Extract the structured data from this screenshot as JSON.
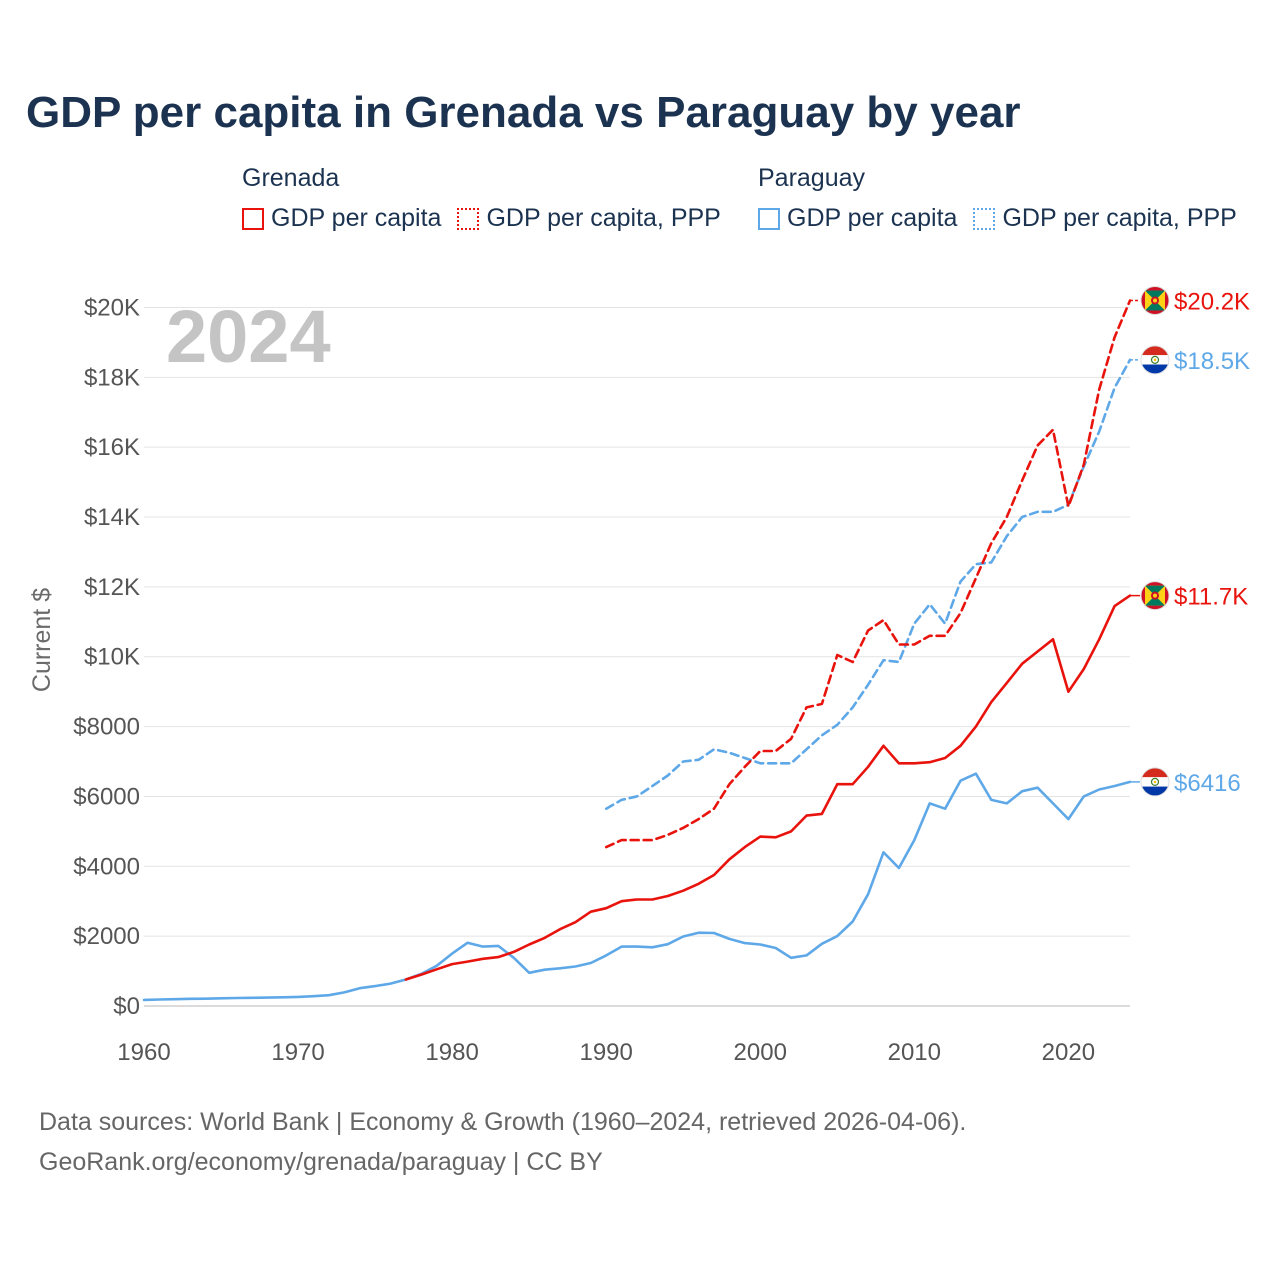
{
  "title": "GDP per capita in Grenada vs Paraguay by year",
  "legend": {
    "groups": [
      {
        "country": "Grenada",
        "items": [
          {
            "label": "GDP per capita",
            "color": "#e8130c",
            "style": "solid"
          },
          {
            "label": "GDP per capita, PPP",
            "color": "#e8130c",
            "style": "dotted"
          }
        ]
      },
      {
        "country": "Paraguay",
        "items": [
          {
            "label": "GDP per capita",
            "color": "#5fa8e8",
            "style": "solid"
          },
          {
            "label": "GDP per capita, PPP",
            "color": "#5fa8e8",
            "style": "dotted"
          }
        ]
      }
    ]
  },
  "footer": {
    "line1": "Data sources: World Bank | Economy & Growth (1960–2024, retrieved 2026-04-06).",
    "line2": "GeoRank.org/economy/grenada/paraguay | CC BY"
  },
  "chart_data": {
    "type": "line",
    "title": "GDP per capita in Grenada vs Paraguay by year",
    "year_label": "2024",
    "xlabel": "",
    "ylabel": "Current $",
    "xlim": [
      1960,
      2024
    ],
    "ylim": [
      0,
      20500
    ],
    "x_ticks": [
      1960,
      1970,
      1980,
      1990,
      2000,
      2010,
      2020
    ],
    "y_ticks": [
      0,
      2000,
      4000,
      6000,
      8000,
      10000,
      12000,
      14000,
      16000,
      18000,
      20000
    ],
    "y_tick_labels": [
      "$0",
      "$2000",
      "$4000",
      "$6000",
      "$8000",
      "$10K",
      "$12K",
      "$14K",
      "$16K",
      "$18K",
      "$20K"
    ],
    "grid": true,
    "series": [
      {
        "name": "Paraguay GDP per capita",
        "country": "Paraguay",
        "color": "#5fa8e8",
        "dashed": false,
        "end_label": "$6416",
        "x": [
          1960,
          1961,
          1962,
          1963,
          1964,
          1965,
          1966,
          1967,
          1968,
          1969,
          1970,
          1971,
          1972,
          1973,
          1974,
          1975,
          1976,
          1977,
          1978,
          1979,
          1980,
          1981,
          1982,
          1983,
          1984,
          1985,
          1986,
          1987,
          1988,
          1989,
          1990,
          1991,
          1992,
          1993,
          1994,
          1995,
          1996,
          1997,
          1998,
          1999,
          2000,
          2001,
          2002,
          2003,
          2004,
          2005,
          2006,
          2007,
          2008,
          2009,
          2010,
          2011,
          2012,
          2013,
          2014,
          2015,
          2016,
          2017,
          2018,
          2019,
          2020,
          2021,
          2022,
          2023,
          2024
        ],
        "values": [
          175,
          185,
          195,
          205,
          210,
          220,
          230,
          235,
          240,
          250,
          260,
          280,
          310,
          390,
          510,
          570,
          640,
          760,
          920,
          1150,
          1500,
          1810,
          1700,
          1720,
          1380,
          950,
          1040,
          1080,
          1130,
          1230,
          1450,
          1700,
          1700,
          1680,
          1770,
          1990,
          2100,
          2090,
          1920,
          1800,
          1760,
          1660,
          1380,
          1450,
          1780,
          2000,
          2420,
          3200,
          4400,
          3950,
          4750,
          5800,
          5650,
          6450,
          6650,
          5900,
          5800,
          6150,
          6250,
          5800,
          5350,
          6000,
          6200,
          6300,
          6416
        ]
      },
      {
        "name": "Paraguay GDP per capita, PPP",
        "country": "Paraguay",
        "color": "#5fa8e8",
        "dashed": true,
        "end_label": "$18.5K",
        "x": [
          1990,
          1991,
          1992,
          1993,
          1994,
          1995,
          1996,
          1997,
          1998,
          1999,
          2000,
          2001,
          2002,
          2003,
          2004,
          2005,
          2006,
          2007,
          2008,
          2009,
          2010,
          2011,
          2012,
          2013,
          2014,
          2015,
          2016,
          2017,
          2018,
          2019,
          2020,
          2021,
          2022,
          2023,
          2024
        ],
        "values": [
          5650,
          5900,
          6000,
          6300,
          6600,
          7000,
          7050,
          7350,
          7250,
          7100,
          6950,
          6950,
          6950,
          7350,
          7750,
          8050,
          8550,
          9200,
          9900,
          9850,
          10950,
          11500,
          10950,
          12150,
          12650,
          12700,
          13450,
          14000,
          14150,
          14150,
          14350,
          15450,
          16450,
          17700,
          18500
        ]
      },
      {
        "name": "Grenada GDP per capita",
        "country": "Grenada",
        "color": "#e8130c",
        "dashed": false,
        "end_label": "$11.7K",
        "x": [
          1977,
          1978,
          1979,
          1980,
          1981,
          1982,
          1983,
          1984,
          1985,
          1986,
          1987,
          1988,
          1989,
          1990,
          1991,
          1992,
          1993,
          1994,
          1995,
          1996,
          1997,
          1998,
          1999,
          2000,
          2001,
          2002,
          2003,
          2004,
          2005,
          2006,
          2007,
          2008,
          2009,
          2010,
          2011,
          2012,
          2013,
          2014,
          2015,
          2016,
          2017,
          2018,
          2019,
          2020,
          2021,
          2022,
          2023,
          2024
        ],
        "values": [
          760,
          900,
          1050,
          1200,
          1270,
          1350,
          1400,
          1550,
          1760,
          1950,
          2200,
          2400,
          2700,
          2800,
          3000,
          3050,
          3050,
          3150,
          3300,
          3500,
          3750,
          4200,
          4550,
          4850,
          4830,
          5000,
          5450,
          5500,
          6350,
          6350,
          6850,
          7450,
          6950,
          6950,
          6980,
          7100,
          7450,
          8000,
          8700,
          9250,
          9800,
          10150,
          10500,
          9000,
          9650,
          10500,
          11450,
          11750
        ]
      },
      {
        "name": "Grenada GDP per capita, PPP",
        "country": "Grenada",
        "color": "#e8130c",
        "dashed": true,
        "end_label": "$20.2K",
        "x": [
          1990,
          1991,
          1992,
          1993,
          1994,
          1995,
          1996,
          1997,
          1998,
          1999,
          2000,
          2001,
          2002,
          2003,
          2004,
          2005,
          2006,
          2007,
          2008,
          2009,
          2010,
          2011,
          2012,
          2013,
          2014,
          2015,
          2016,
          2017,
          2018,
          2019,
          2020,
          2021,
          2022,
          2023,
          2024
        ],
        "values": [
          4550,
          4750,
          4750,
          4750,
          4900,
          5100,
          5350,
          5650,
          6350,
          6850,
          7300,
          7300,
          7650,
          8550,
          8650,
          10050,
          9850,
          10750,
          11050,
          10350,
          10350,
          10600,
          10600,
          11250,
          12250,
          13250,
          14000,
          15050,
          16050,
          16500,
          14300,
          15500,
          17650,
          19150,
          20200
        ]
      }
    ]
  }
}
